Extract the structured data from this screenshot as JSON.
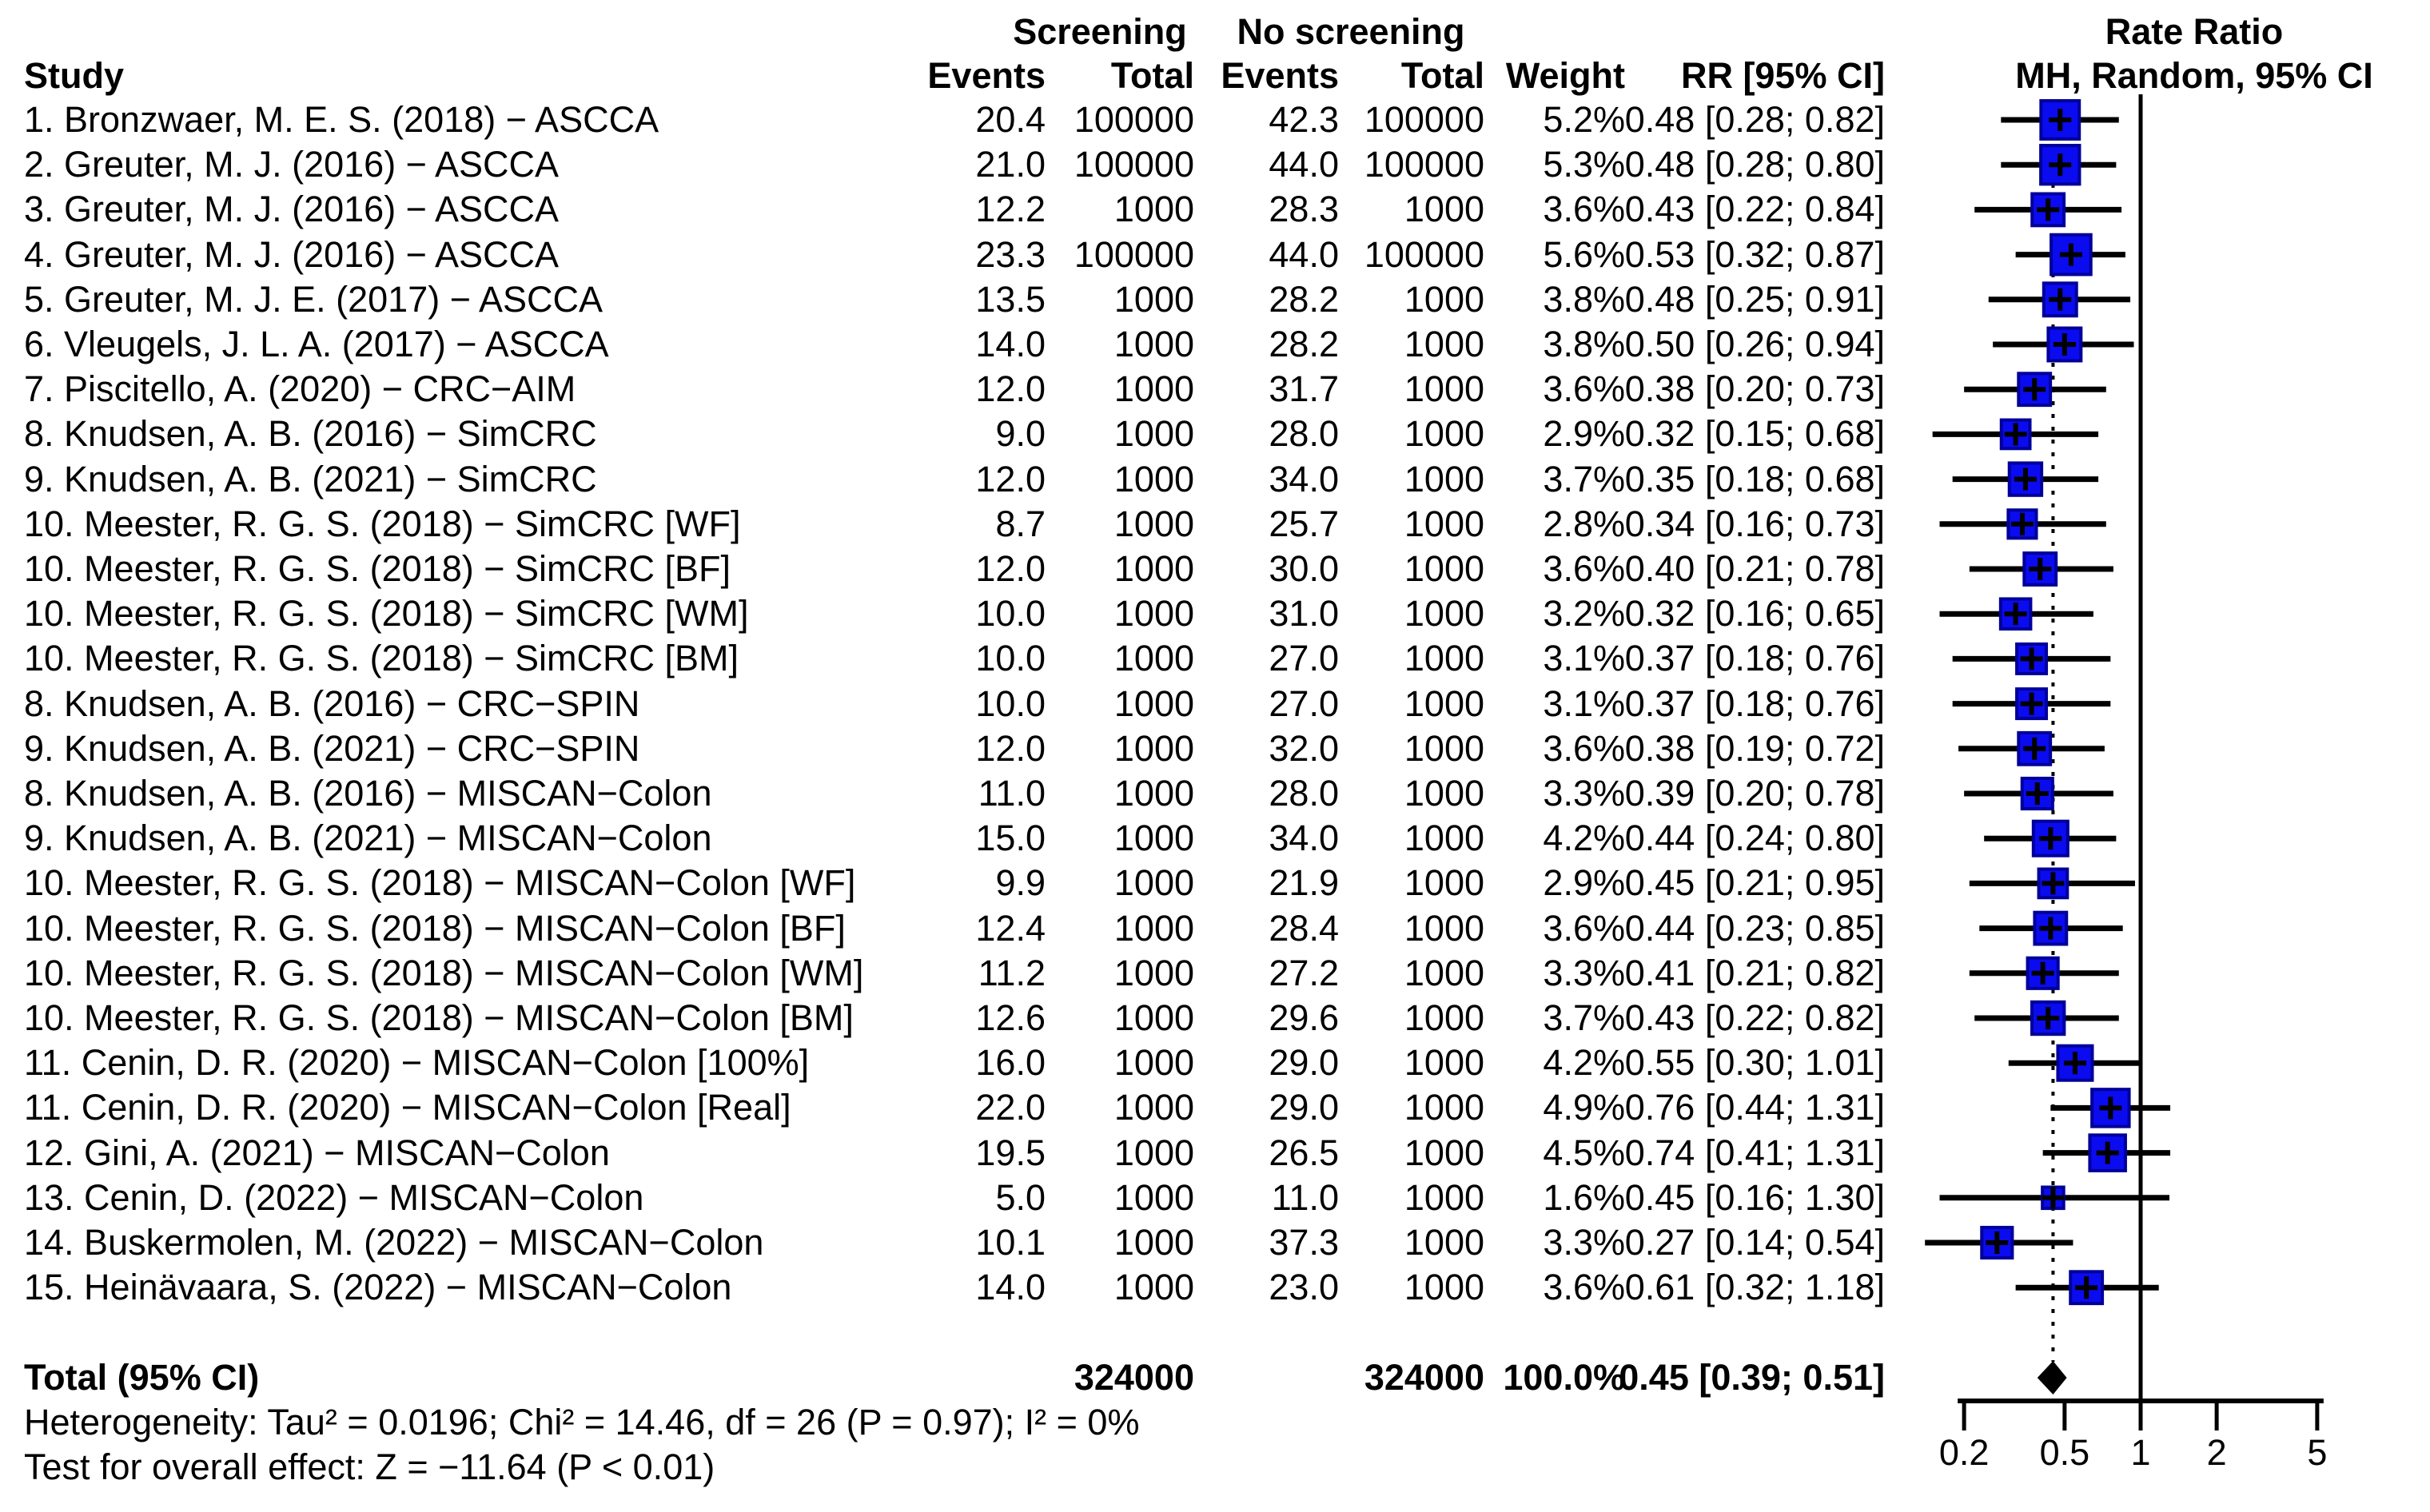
{
  "chart_data": {
    "type": "forest",
    "title": "Rate Ratio forest plot (MH, Random effects)",
    "header": {
      "study": "Study",
      "screening": "Screening",
      "no_screening": "No screening",
      "events": "Events",
      "total": "Total",
      "weight": "Weight",
      "rr": "RR [95% CI]",
      "plot_line1": "Rate Ratio",
      "plot_line2": "MH, Random, 95% CI"
    },
    "studies": [
      {
        "label": "1. Bronzwaer, M. E. S. (2018) − ASCCA",
        "scr_events": "20.4",
        "scr_total": "100000",
        "nos_events": "42.3",
        "nos_total": "100000",
        "weight": "5.2%",
        "rr_text": "0.48 [0.28; 0.82]",
        "rr": 0.48,
        "lo": 0.28,
        "hi": 0.82,
        "w": 5.2
      },
      {
        "label": "2. Greuter, M. J. (2016) − ASCCA",
        "scr_events": "21.0",
        "scr_total": "100000",
        "nos_events": "44.0",
        "nos_total": "100000",
        "weight": "5.3%",
        "rr_text": "0.48 [0.28; 0.80]",
        "rr": 0.48,
        "lo": 0.28,
        "hi": 0.8,
        "w": 5.3
      },
      {
        "label": "3. Greuter, M. J. (2016) − ASCCA",
        "scr_events": "12.2",
        "scr_total": "1000",
        "nos_events": "28.3",
        "nos_total": "1000",
        "weight": "3.6%",
        "rr_text": "0.43 [0.22; 0.84]",
        "rr": 0.43,
        "lo": 0.22,
        "hi": 0.84,
        "w": 3.6
      },
      {
        "label": "4. Greuter, M. J. (2016) − ASCCA",
        "scr_events": "23.3",
        "scr_total": "100000",
        "nos_events": "44.0",
        "nos_total": "100000",
        "weight": "5.6%",
        "rr_text": "0.53 [0.32; 0.87]",
        "rr": 0.53,
        "lo": 0.32,
        "hi": 0.87,
        "w": 5.6
      },
      {
        "label": "5. Greuter, M. J. E. (2017) − ASCCA",
        "scr_events": "13.5",
        "scr_total": "1000",
        "nos_events": "28.2",
        "nos_total": "1000",
        "weight": "3.8%",
        "rr_text": "0.48 [0.25; 0.91]",
        "rr": 0.48,
        "lo": 0.25,
        "hi": 0.91,
        "w": 3.8
      },
      {
        "label": "6. Vleugels, J. L. A. (2017) − ASCCA",
        "scr_events": "14.0",
        "scr_total": "1000",
        "nos_events": "28.2",
        "nos_total": "1000",
        "weight": "3.8%",
        "rr_text": "0.50 [0.26; 0.94]",
        "rr": 0.5,
        "lo": 0.26,
        "hi": 0.94,
        "w": 3.8
      },
      {
        "label": "7. Piscitello, A. (2020) − CRC−AIM",
        "scr_events": "12.0",
        "scr_total": "1000",
        "nos_events": "31.7",
        "nos_total": "1000",
        "weight": "3.6%",
        "rr_text": "0.38 [0.20; 0.73]",
        "rr": 0.38,
        "lo": 0.2,
        "hi": 0.73,
        "w": 3.6
      },
      {
        "label": "8. Knudsen, A. B. (2016) − SimCRC",
        "scr_events": "9.0",
        "scr_total": "1000",
        "nos_events": "28.0",
        "nos_total": "1000",
        "weight": "2.9%",
        "rr_text": "0.32 [0.15; 0.68]",
        "rr": 0.32,
        "lo": 0.15,
        "hi": 0.68,
        "w": 2.9
      },
      {
        "label": "9. Knudsen, A. B. (2021) − SimCRC",
        "scr_events": "12.0",
        "scr_total": "1000",
        "nos_events": "34.0",
        "nos_total": "1000",
        "weight": "3.7%",
        "rr_text": "0.35 [0.18; 0.68]",
        "rr": 0.35,
        "lo": 0.18,
        "hi": 0.68,
        "w": 3.7
      },
      {
        "label": "10. Meester, R. G. S. (2018) − SimCRC [WF]",
        "scr_events": "8.7",
        "scr_total": "1000",
        "nos_events": "25.7",
        "nos_total": "1000",
        "weight": "2.8%",
        "rr_text": "0.34 [0.16; 0.73]",
        "rr": 0.34,
        "lo": 0.16,
        "hi": 0.73,
        "w": 2.8
      },
      {
        "label": "10. Meester, R. G. S. (2018) − SimCRC [BF]",
        "scr_events": "12.0",
        "scr_total": "1000",
        "nos_events": "30.0",
        "nos_total": "1000",
        "weight": "3.6%",
        "rr_text": "0.40 [0.21; 0.78]",
        "rr": 0.4,
        "lo": 0.21,
        "hi": 0.78,
        "w": 3.6
      },
      {
        "label": "10. Meester, R. G. S. (2018) − SimCRC [WM]",
        "scr_events": "10.0",
        "scr_total": "1000",
        "nos_events": "31.0",
        "nos_total": "1000",
        "weight": "3.2%",
        "rr_text": "0.32 [0.16; 0.65]",
        "rr": 0.32,
        "lo": 0.16,
        "hi": 0.65,
        "w": 3.2
      },
      {
        "label": "10. Meester, R. G. S. (2018) − SimCRC [BM]",
        "scr_events": "10.0",
        "scr_total": "1000",
        "nos_events": "27.0",
        "nos_total": "1000",
        "weight": "3.1%",
        "rr_text": "0.37 [0.18; 0.76]",
        "rr": 0.37,
        "lo": 0.18,
        "hi": 0.76,
        "w": 3.1
      },
      {
        "label": "8. Knudsen, A. B. (2016) − CRC−SPIN",
        "scr_events": "10.0",
        "scr_total": "1000",
        "nos_events": "27.0",
        "nos_total": "1000",
        "weight": "3.1%",
        "rr_text": "0.37 [0.18; 0.76]",
        "rr": 0.37,
        "lo": 0.18,
        "hi": 0.76,
        "w": 3.1
      },
      {
        "label": "9. Knudsen, A. B. (2021) − CRC−SPIN",
        "scr_events": "12.0",
        "scr_total": "1000",
        "nos_events": "32.0",
        "nos_total": "1000",
        "weight": "3.6%",
        "rr_text": "0.38 [0.19; 0.72]",
        "rr": 0.38,
        "lo": 0.19,
        "hi": 0.72,
        "w": 3.6
      },
      {
        "label": "8. Knudsen, A. B. (2016) − MISCAN−Colon",
        "scr_events": "11.0",
        "scr_total": "1000",
        "nos_events": "28.0",
        "nos_total": "1000",
        "weight": "3.3%",
        "rr_text": "0.39 [0.20; 0.78]",
        "rr": 0.39,
        "lo": 0.2,
        "hi": 0.78,
        "w": 3.3
      },
      {
        "label": "9. Knudsen, A. B. (2021) − MISCAN−Colon",
        "scr_events": "15.0",
        "scr_total": "1000",
        "nos_events": "34.0",
        "nos_total": "1000",
        "weight": "4.2%",
        "rr_text": "0.44 [0.24; 0.80]",
        "rr": 0.44,
        "lo": 0.24,
        "hi": 0.8,
        "w": 4.2
      },
      {
        "label": "10. Meester, R. G. S. (2018) − MISCAN−Colon [WF]",
        "scr_events": "9.9",
        "scr_total": "1000",
        "nos_events": "21.9",
        "nos_total": "1000",
        "weight": "2.9%",
        "rr_text": "0.45 [0.21; 0.95]",
        "rr": 0.45,
        "lo": 0.21,
        "hi": 0.95,
        "w": 2.9
      },
      {
        "label": "10. Meester, R. G. S. (2018) − MISCAN−Colon [BF]",
        "scr_events": "12.4",
        "scr_total": "1000",
        "nos_events": "28.4",
        "nos_total": "1000",
        "weight": "3.6%",
        "rr_text": "0.44 [0.23; 0.85]",
        "rr": 0.44,
        "lo": 0.23,
        "hi": 0.85,
        "w": 3.6
      },
      {
        "label": "10. Meester, R. G. S. (2018) − MISCAN−Colon [WM]",
        "scr_events": "11.2",
        "scr_total": "1000",
        "nos_events": "27.2",
        "nos_total": "1000",
        "weight": "3.3%",
        "rr_text": "0.41 [0.21; 0.82]",
        "rr": 0.41,
        "lo": 0.21,
        "hi": 0.82,
        "w": 3.3
      },
      {
        "label": "10. Meester, R. G. S. (2018) − MISCAN−Colon [BM]",
        "scr_events": "12.6",
        "scr_total": "1000",
        "nos_events": "29.6",
        "nos_total": "1000",
        "weight": "3.7%",
        "rr_text": "0.43 [0.22; 0.82]",
        "rr": 0.43,
        "lo": 0.22,
        "hi": 0.82,
        "w": 3.7
      },
      {
        "label": "11. Cenin, D. R. (2020) − MISCAN−Colon [100%]",
        "scr_events": "16.0",
        "scr_total": "1000",
        "nos_events": "29.0",
        "nos_total": "1000",
        "weight": "4.2%",
        "rr_text": "0.55 [0.30; 1.01]",
        "rr": 0.55,
        "lo": 0.3,
        "hi": 1.01,
        "w": 4.2
      },
      {
        "label": "11. Cenin, D. R. (2020) − MISCAN−Colon [Real]",
        "scr_events": "22.0",
        "scr_total": "1000",
        "nos_events": "29.0",
        "nos_total": "1000",
        "weight": "4.9%",
        "rr_text": "0.76 [0.44; 1.31]",
        "rr": 0.76,
        "lo": 0.44,
        "hi": 1.31,
        "w": 4.9
      },
      {
        "label": "12. Gini, A. (2021) − MISCAN−Colon",
        "scr_events": "19.5",
        "scr_total": "1000",
        "nos_events": "26.5",
        "nos_total": "1000",
        "weight": "4.5%",
        "rr_text": "0.74 [0.41; 1.31]",
        "rr": 0.74,
        "lo": 0.41,
        "hi": 1.31,
        "w": 4.5
      },
      {
        "label": "13. Cenin, D. (2022) − MISCAN−Colon",
        "scr_events": "5.0",
        "scr_total": "1000",
        "nos_events": "11.0",
        "nos_total": "1000",
        "weight": "1.6%",
        "rr_text": "0.45 [0.16; 1.30]",
        "rr": 0.45,
        "lo": 0.16,
        "hi": 1.3,
        "w": 1.6
      },
      {
        "label": "14. Buskermolen, M. (2022) − MISCAN−Colon",
        "scr_events": "10.1",
        "scr_total": "1000",
        "nos_events": "37.3",
        "nos_total": "1000",
        "weight": "3.3%",
        "rr_text": "0.27 [0.14; 0.54]",
        "rr": 0.27,
        "lo": 0.14,
        "hi": 0.54,
        "w": 3.3
      },
      {
        "label": "15. Heinävaara, S. (2022) − MISCAN−Colon",
        "scr_events": "14.0",
        "scr_total": "1000",
        "nos_events": "23.0",
        "nos_total": "1000",
        "weight": "3.6%",
        "rr_text": "0.61 [0.32; 1.18]",
        "rr": 0.61,
        "lo": 0.32,
        "hi": 1.18,
        "w": 3.6
      }
    ],
    "total": {
      "label": "Total (95% CI)",
      "scr_total": "324000",
      "nos_total": "324000",
      "weight": "100.0%",
      "rr_text": "0.45 [0.39; 0.51]",
      "rr": 0.45,
      "lo": 0.39,
      "hi": 0.51
    },
    "footnotes": {
      "heterogeneity": "Heterogeneity: Tau² = 0.0196; Chi² = 14.46, df = 26 (P = 0.97); I² = 0%",
      "overall_effect": "Test for overall effect: Z = −11.64 (P < 0.01)"
    },
    "axis": {
      "scale": "log",
      "xlim": [
        0.2,
        5
      ],
      "ticks": [
        "0.2",
        "0.5",
        "1",
        "2",
        "5"
      ],
      "tick_values": [
        0.2,
        0.5,
        1,
        2,
        5
      ],
      "ref_line": 1,
      "dotted_line": 0.45
    },
    "colors": {
      "square_fill": "#0b0bf0",
      "square_border": "#000099",
      "line": "#000000",
      "diamond": "#000000"
    }
  }
}
